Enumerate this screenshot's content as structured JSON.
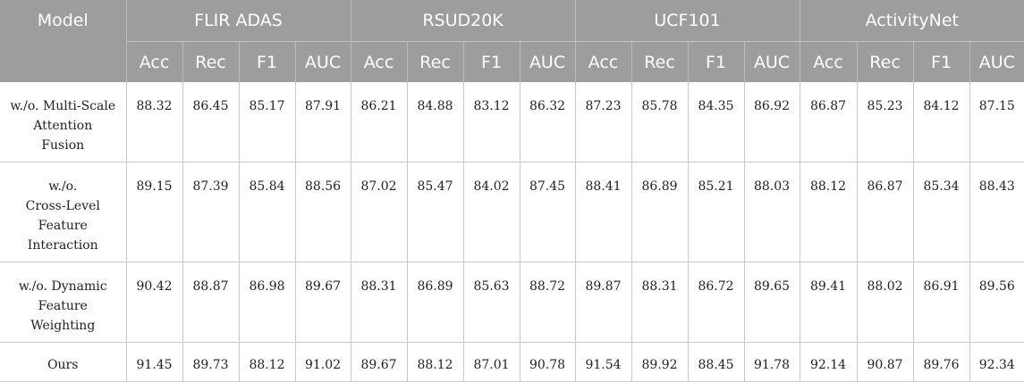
{
  "header": {
    "model": "Model",
    "groups": [
      "FLIR ADAS",
      "RSUD20K",
      "UCF101",
      "ActivityNet"
    ],
    "metrics": [
      "Acc",
      "Rec",
      "F1",
      "AUC"
    ]
  },
  "rows": [
    {
      "label": [
        "w./o. Multi-Scale",
        "Attention",
        "Fusion"
      ],
      "values": [
        "88.32",
        "86.45",
        "85.17",
        "87.91",
        "86.21",
        "84.88",
        "83.12",
        "86.32",
        "87.23",
        "85.78",
        "84.35",
        "86.92",
        "86.87",
        "85.23",
        "84.12",
        "87.15"
      ]
    },
    {
      "label": [
        "w./o.",
        "Cross-Level",
        "Feature",
        "Interaction"
      ],
      "values": [
        "89.15",
        "87.39",
        "85.84",
        "88.56",
        "87.02",
        "85.47",
        "84.02",
        "87.45",
        "88.41",
        "86.89",
        "85.21",
        "88.03",
        "88.12",
        "86.87",
        "85.34",
        "88.43"
      ]
    },
    {
      "label": [
        "w./o. Dynamic",
        "Feature",
        "Weighting"
      ],
      "values": [
        "90.42",
        "88.87",
        "86.98",
        "89.67",
        "88.31",
        "86.89",
        "85.63",
        "88.72",
        "89.87",
        "88.31",
        "86.72",
        "89.65",
        "89.41",
        "88.02",
        "86.91",
        "89.56"
      ]
    },
    {
      "label": [
        "Ours"
      ],
      "values": [
        "91.45",
        "89.73",
        "88.12",
        "91.02",
        "89.67",
        "88.12",
        "87.01",
        "90.78",
        "91.54",
        "89.92",
        "88.45",
        "91.78",
        "92.14",
        "90.87",
        "89.76",
        "92.34"
      ]
    }
  ]
}
